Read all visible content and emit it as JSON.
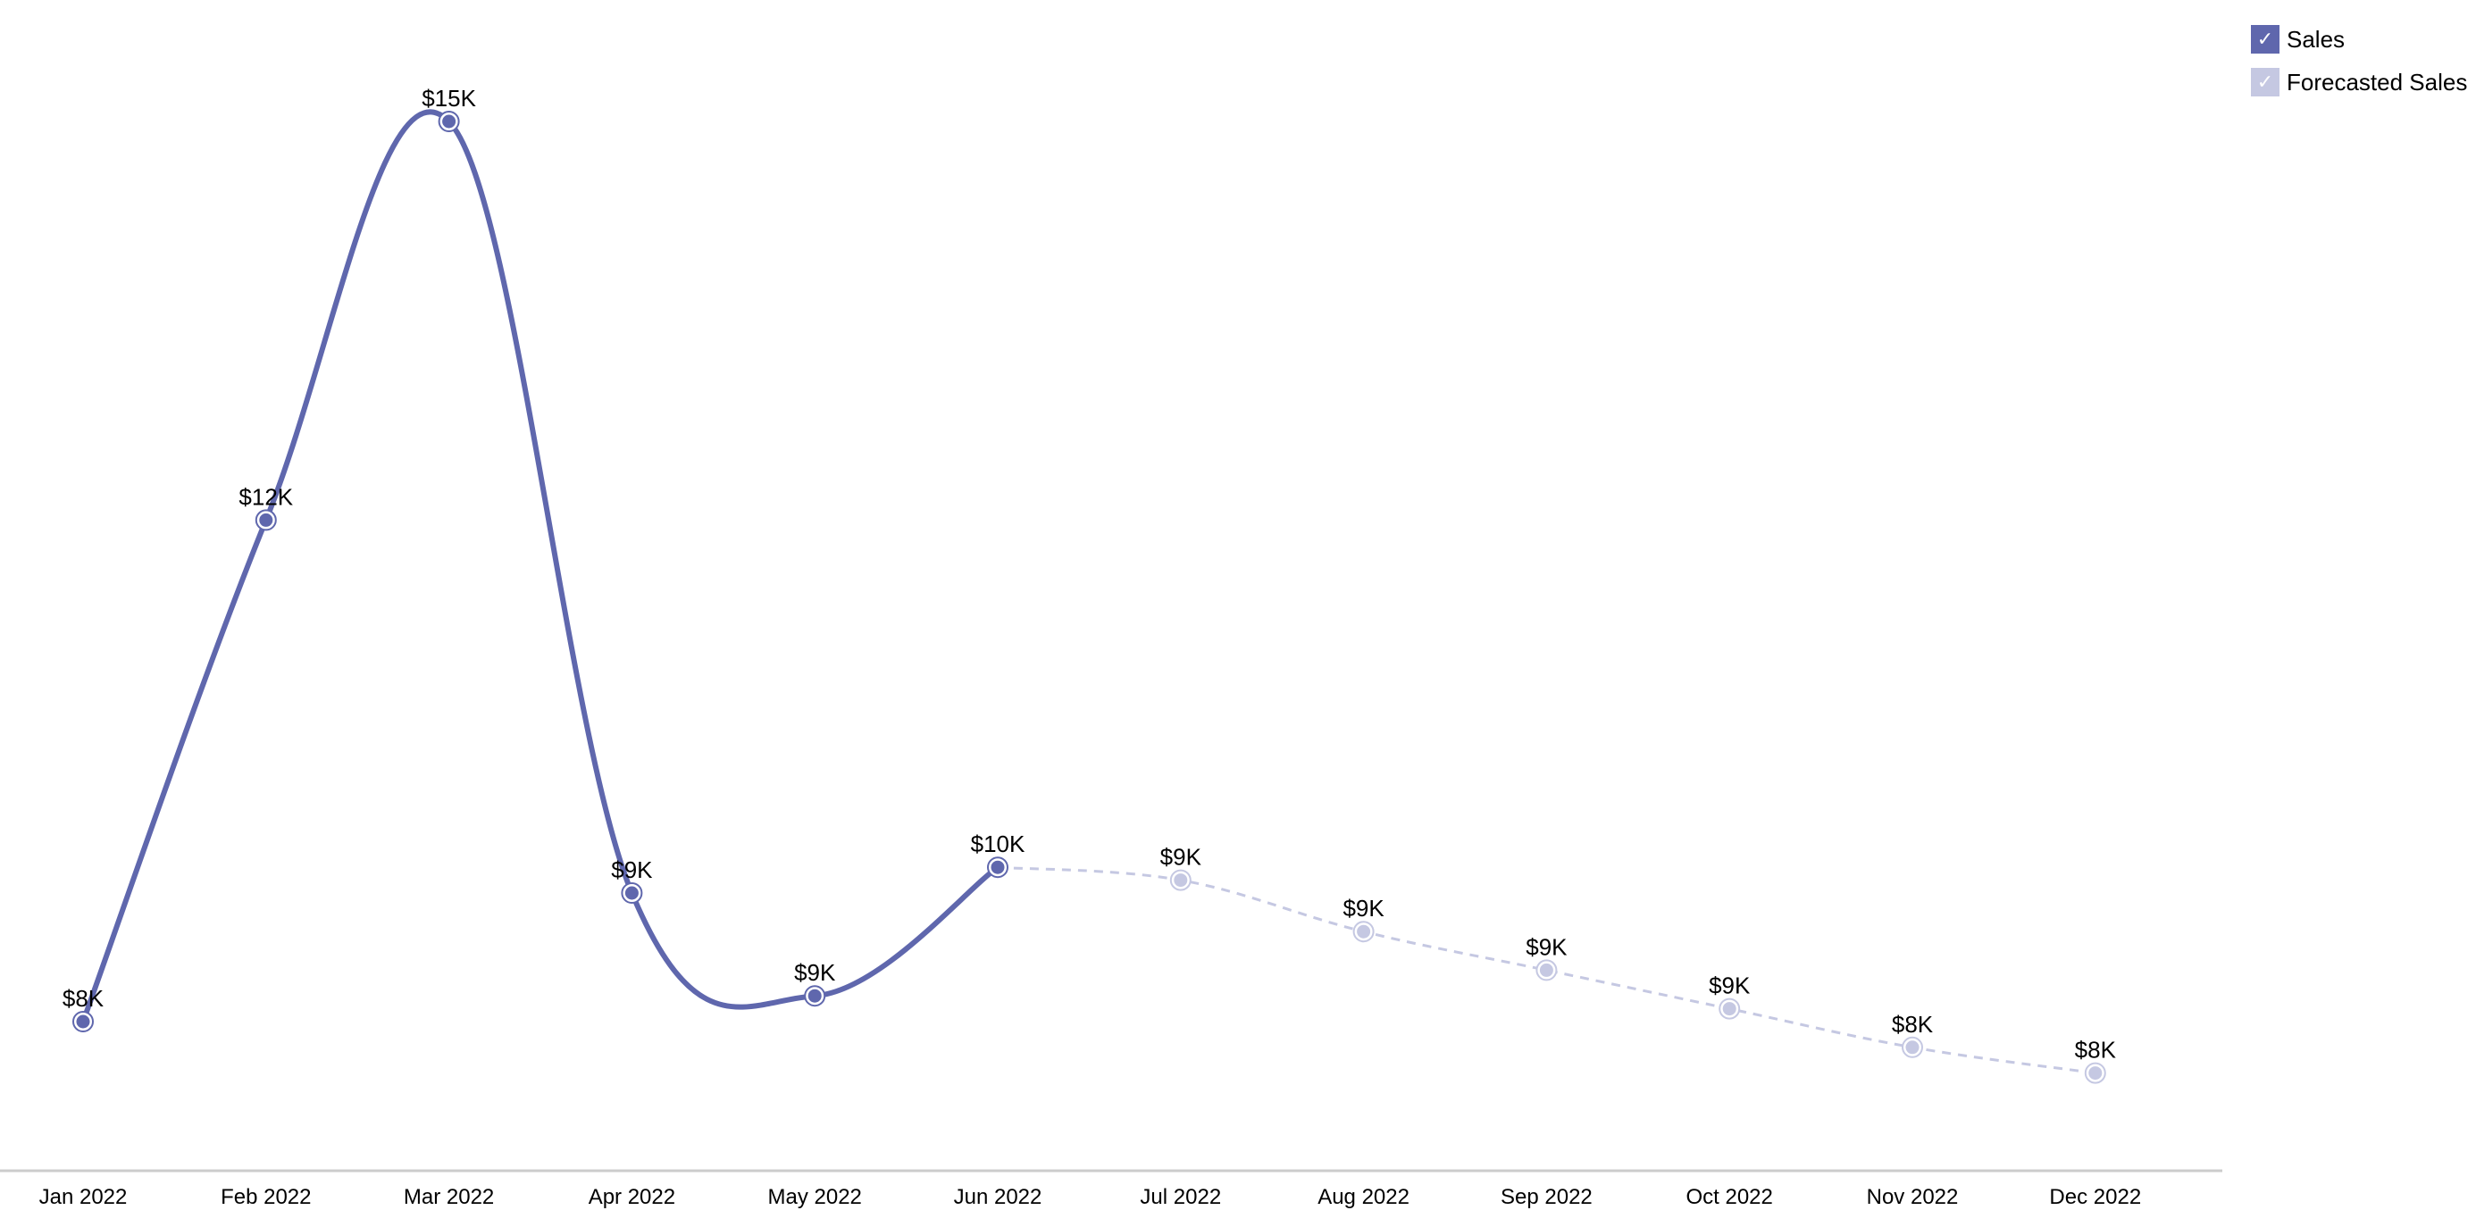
{
  "chart_data": {
    "type": "line",
    "title": "",
    "xlabel": "",
    "ylabel": "",
    "categories": [
      "Jan 2022",
      "Feb 2022",
      "Mar 2022",
      "Apr 2022",
      "May 2022",
      "Jun 2022",
      "Jul 2022",
      "Aug 2022",
      "Sep 2022",
      "Oct 2022",
      "Nov 2022",
      "Dec 2022"
    ],
    "series": [
      {
        "name": "Sales",
        "color": "#5f67ad",
        "style": "solid",
        "values": [
          8.4,
          12.3,
          15.4,
          9.4,
          8.6,
          9.6,
          null,
          null,
          null,
          null,
          null,
          null
        ],
        "labels": [
          "$8K",
          "$12K",
          "$15K",
          "$9K",
          "$9K",
          "$10K",
          "",
          "",
          "",
          "",
          "",
          ""
        ]
      },
      {
        "name": "Forecasted Sales",
        "color": "#c5c8e2",
        "style": "dashed",
        "values": [
          null,
          null,
          null,
          null,
          null,
          9.6,
          9.5,
          9.1,
          8.8,
          8.5,
          8.2,
          8.0
        ],
        "labels": [
          "",
          "",
          "",
          "",
          "",
          "",
          "$9K",
          "$9K",
          "$9K",
          "$9K",
          "$8K",
          "$8K"
        ]
      }
    ],
    "grid": false,
    "legend_position": "top-right",
    "value_format": "$#K"
  },
  "legend": {
    "items": [
      {
        "label": "Sales",
        "color": "#5f67ad",
        "checked": true,
        "check_glyph": "✓"
      },
      {
        "label": "Forecasted Sales",
        "color": "#c5c8e2",
        "checked": true,
        "check_glyph": "✓"
      }
    ]
  }
}
